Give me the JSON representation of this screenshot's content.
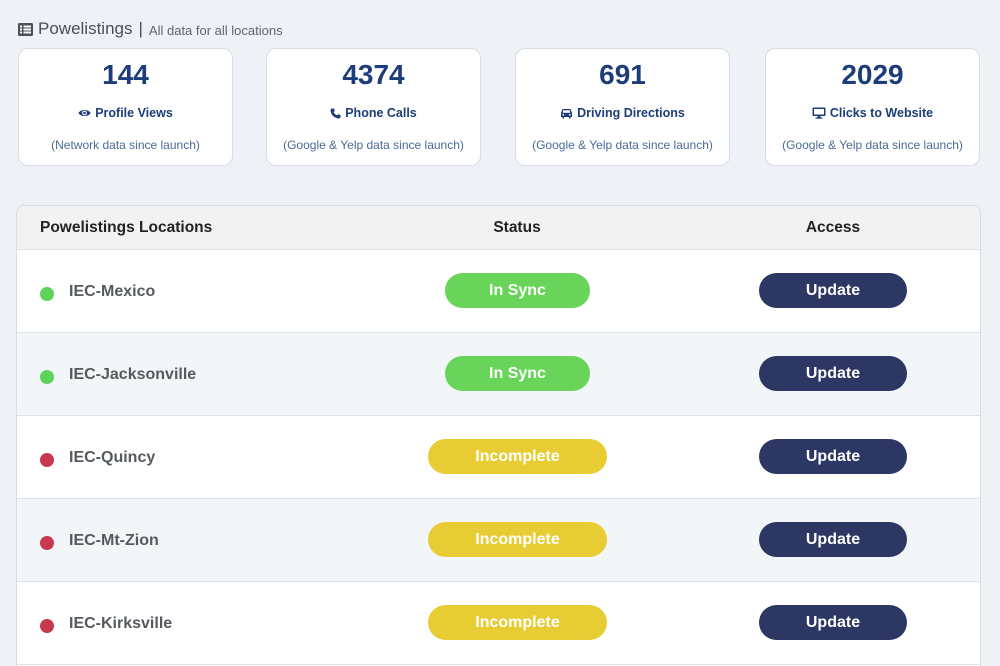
{
  "header": {
    "title": "Powelistings",
    "separator": "|",
    "subtitle": "All data for all locations"
  },
  "stats": [
    {
      "value": "144",
      "label": "Profile Views",
      "icon": "eye-icon",
      "note": "(Network data since launch)"
    },
    {
      "value": "4374",
      "label": "Phone Calls",
      "icon": "phone-icon",
      "note": "(Google & Yelp data since launch)"
    },
    {
      "value": "691",
      "label": "Driving Directions",
      "icon": "car-icon",
      "note": "(Google & Yelp data since launch)"
    },
    {
      "value": "2029",
      "label": "Clicks to Website",
      "icon": "monitor-icon",
      "note": "(Google & Yelp data since launch)"
    }
  ],
  "table": {
    "columns": {
      "location": "Powelistings Locations",
      "status": "Status",
      "access": "Access"
    },
    "rows": [
      {
        "name": "IEC-Mexico",
        "indicator": "#5ed35b",
        "status": "In Sync",
        "action": "Update"
      },
      {
        "name": "IEC-Jacksonville",
        "indicator": "#5ed35b",
        "status": "In Sync",
        "action": "Update"
      },
      {
        "name": "IEC-Quincy",
        "indicator": "#c8384f",
        "status": "Incomplete",
        "action": "Update"
      },
      {
        "name": "IEC-Mt-Zion",
        "indicator": "#c8384f",
        "status": "Incomplete",
        "action": "Update"
      },
      {
        "name": "IEC-Kirksville",
        "indicator": "#c8384f",
        "status": "Incomplete",
        "action": "Update"
      }
    ]
  },
  "colors": {
    "accent": "#1c3c7a",
    "in_sync": "#68d55a",
    "incomplete": "#e8cc33",
    "button": "#2d3763"
  }
}
